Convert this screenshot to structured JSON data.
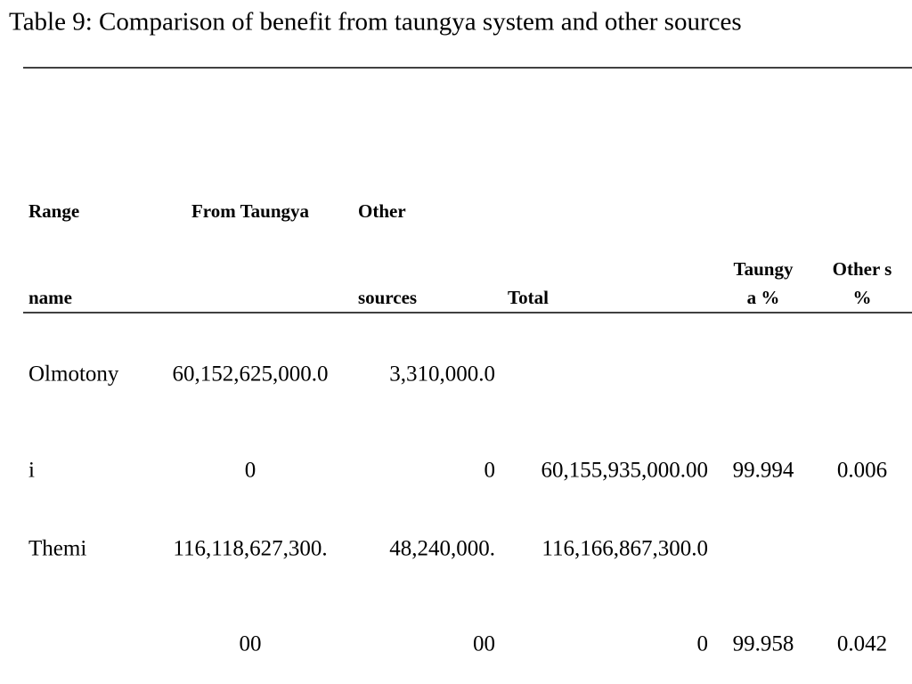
{
  "title": "Table 9: Comparison of benefit from taungya system and other sources",
  "table": {
    "columns": [
      [
        "Range",
        "name"
      ],
      [
        "From Taungya"
      ],
      [
        "Other",
        "sources"
      ],
      [
        "Total"
      ],
      [
        "Taungy",
        "a %"
      ],
      [
        "Other s",
        "%"
      ]
    ],
    "rows": [
      [
        [
          "Olmotony",
          "i"
        ],
        [
          "60,152,625,000.0",
          "0"
        ],
        [
          "3,310,000.0",
          "0"
        ],
        [
          "60,155,935,000.00"
        ],
        [
          "99.994"
        ],
        [
          "0.006"
        ]
      ],
      [
        [
          "Themi"
        ],
        [
          "116,118,627,300.",
          "00"
        ],
        [
          "48,240,000.",
          "00"
        ],
        [
          "116,166,867,300.0",
          "0"
        ],
        [
          "99.958"
        ],
        [
          "0.042"
        ]
      ]
    ]
  }
}
